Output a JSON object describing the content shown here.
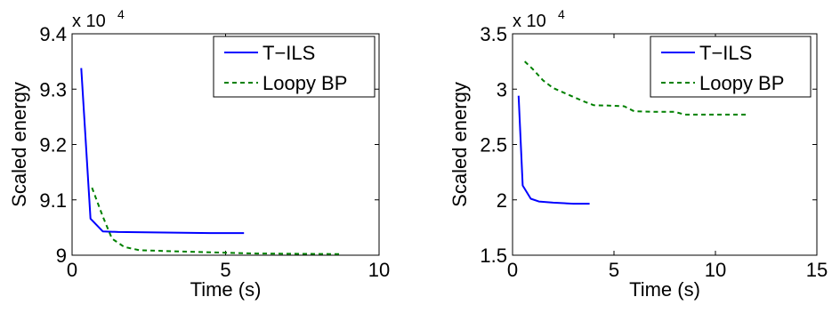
{
  "chart_data": [
    {
      "type": "line",
      "title": "",
      "xlabel": "Time (s)",
      "ylabel": "Scaled energy",
      "exponent_label": "x 10",
      "exponent_power": "4",
      "xlim": [
        0,
        10
      ],
      "ylim": [
        9.0,
        9.4
      ],
      "xticks": [
        0,
        5,
        10
      ],
      "xtick_labels": [
        "0",
        "5",
        "10"
      ],
      "yticks": [
        9.0,
        9.1,
        9.2,
        9.3,
        9.4
      ],
      "ytick_labels": [
        "9",
        "9.1",
        "9.2",
        "9.3",
        "9.4"
      ],
      "grid": false,
      "legend_position": "top-right",
      "series": [
        {
          "name": "T−ILS",
          "color": "#0000ff",
          "dash": "solid",
          "x": [
            0.3,
            0.6,
            1.0,
            1.5,
            3.0,
            4.5,
            5.6
          ],
          "y": [
            9.338,
            9.066,
            9.043,
            9.042,
            9.041,
            9.04,
            9.04
          ]
        },
        {
          "name": "Loopy BP",
          "color": "#008000",
          "dash": "dashed",
          "x": [
            0.65,
            1.0,
            1.3,
            1.7,
            2.2,
            4.0,
            6.0,
            8.8
          ],
          "y": [
            9.122,
            9.07,
            9.03,
            9.015,
            9.009,
            9.006,
            9.003,
            9.002
          ]
        }
      ]
    },
    {
      "type": "line",
      "title": "",
      "xlabel": "Time (s)",
      "ylabel": "Scaled energy",
      "exponent_label": "x 10",
      "exponent_power": "4",
      "xlim": [
        0,
        15
      ],
      "ylim": [
        1.5,
        3.5
      ],
      "xticks": [
        0,
        5,
        10,
        15
      ],
      "xtick_labels": [
        "0",
        "5",
        "10",
        "15"
      ],
      "yticks": [
        1.5,
        2.0,
        2.5,
        3.0,
        3.5
      ],
      "ytick_labels": [
        "1.5",
        "2",
        "2.5",
        "3",
        "3.5"
      ],
      "grid": false,
      "legend_position": "top-right",
      "series": [
        {
          "name": "T−ILS",
          "color": "#0000ff",
          "dash": "solid",
          "x": [
            0.3,
            0.5,
            0.9,
            1.3,
            2.0,
            3.0,
            3.8
          ],
          "y": [
            2.94,
            2.13,
            2.01,
            1.985,
            1.975,
            1.965,
            1.965
          ]
        },
        {
          "name": "Loopy BP",
          "color": "#008000",
          "dash": "dashed",
          "x": [
            0.6,
            1.0,
            1.5,
            2.0,
            3.0,
            3.5,
            4.0,
            5.0,
            5.5,
            6.0,
            7.0,
            8.0,
            8.5,
            10.0,
            11.6
          ],
          "y": [
            3.25,
            3.18,
            3.08,
            3.01,
            2.93,
            2.89,
            2.855,
            2.85,
            2.845,
            2.8,
            2.795,
            2.795,
            2.77,
            2.77,
            2.77
          ]
        }
      ]
    }
  ]
}
